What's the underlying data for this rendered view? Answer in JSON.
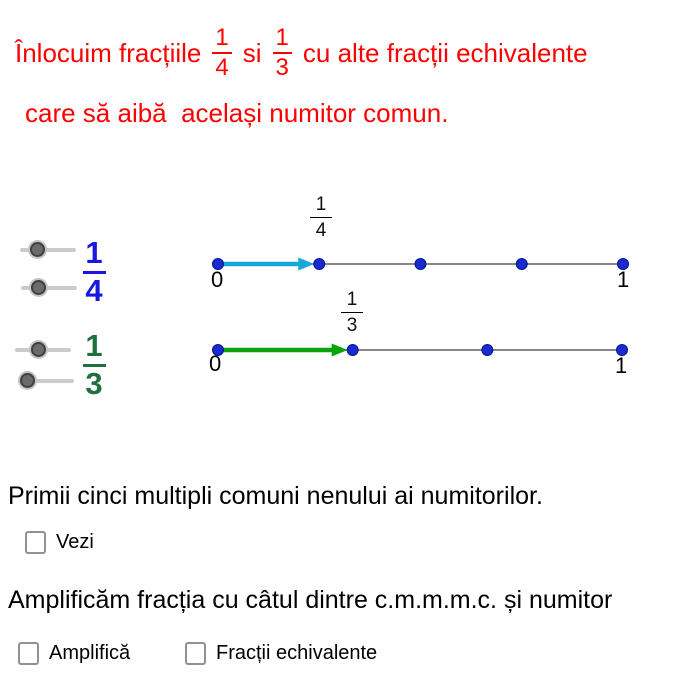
{
  "title": {
    "color": "#ff0000",
    "line1": {
      "part1": "Înlocuim fracțiile",
      "fraction1": {
        "numerator": "1",
        "denominator": "4"
      },
      "part2": "si",
      "fraction2": {
        "numerator": "1",
        "denominator": "3"
      },
      "part3": "cu alte fracții echivalente"
    },
    "line2": "care să aibă  același numitor comun."
  },
  "slider_panel": {
    "fraction_one_fourth": {
      "numerator": "1",
      "denominator": "4",
      "color": "#1717e0"
    },
    "fraction_one_third": {
      "numerator": "1",
      "denominator": "3",
      "color": "#20703f"
    }
  },
  "number_lines": [
    {
      "denominator": 4,
      "start_label": "0",
      "end_label": "1",
      "point_label": {
        "numerator": "1",
        "denominator": "4"
      },
      "arrow": {
        "numerator": 1,
        "color": "#17a8da"
      },
      "dot_color": "#1a2ad0",
      "dot_border": "#001a8c",
      "line_color": "#606060"
    },
    {
      "denominator": 3,
      "start_label": "0",
      "end_label": "1",
      "point_label": {
        "numerator": "1",
        "denominator": "3"
      },
      "arrow": {
        "numerator": 1,
        "color": "#0aa30a"
      },
      "dot_color": "#1a2ad0",
      "dot_border": "#001a8c",
      "line_color": "#606060"
    }
  ],
  "sections": {
    "multiples": {
      "text": "Primii cinci multipli comuni nenului ai numitorilor.",
      "checkbox": {
        "label": "Vezi",
        "checked": false
      }
    },
    "amplify": {
      "text": "Amplificăm fracția cu câtul dintre c.m.m.m.c. și numitor",
      "checkbox_amplifica": {
        "label": "Amplifică",
        "checked": false
      },
      "checkbox_echivalente": {
        "label": "Fracții echivalente",
        "checked": false
      }
    }
  }
}
